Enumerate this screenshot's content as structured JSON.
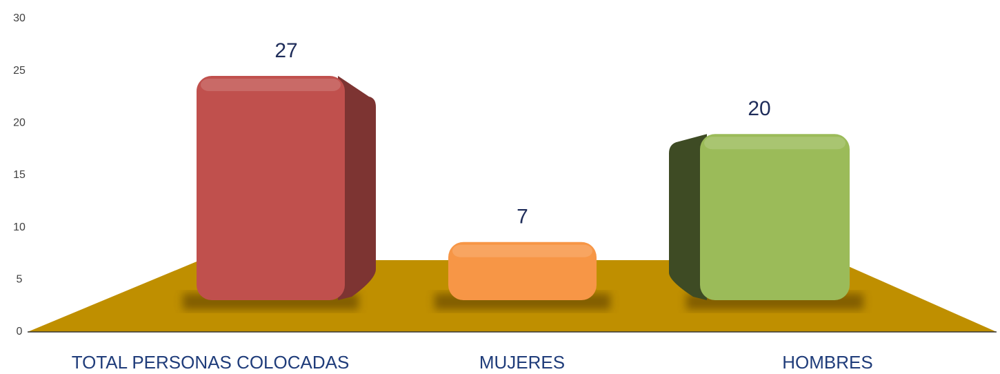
{
  "chart_data": {
    "type": "bar3d",
    "categories": [
      "TOTAL PERSONAS COLOCADAS",
      "MUJERES",
      "HOMBRES"
    ],
    "values": [
      27,
      7,
      20
    ],
    "colors": [
      "#c0504d",
      "#f79646",
      "#9bbb59"
    ],
    "floor_color": "#bf8f00",
    "ylim": [
      0,
      30
    ],
    "yticks": [
      0,
      5,
      10,
      15,
      20,
      25,
      30
    ],
    "grid": false
  }
}
